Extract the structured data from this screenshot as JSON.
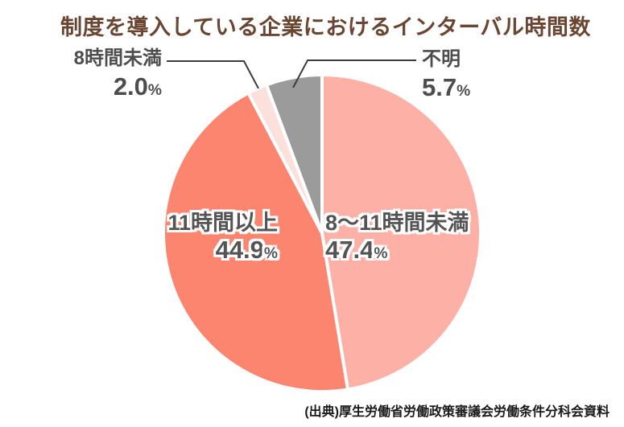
{
  "title": "制度を導入している企業におけるインターバル時間数",
  "source": "(出典)厚生労働省労働政策審議会労働条件分科会資料",
  "unit": "%",
  "colors": {
    "title_text": "#6a4531",
    "outside_label_text": "#4d4d4d",
    "inside_label_text": "#545454",
    "leader_line": "#3c3c3c",
    "slice_separator": "#ffffff",
    "background": "#ffffff"
  },
  "chart_data": {
    "type": "pie",
    "title": "制度を導入している企業におけるインターバル時間数",
    "start_angle_deg": 0,
    "direction": "clockwise",
    "legend_position": "none",
    "unit": "%",
    "slices": [
      {
        "label": "8〜11時間未満",
        "value": 47.4,
        "display": "47.4",
        "color": "#fdb1a6",
        "label_placement": "inside-right"
      },
      {
        "label": "11時間以上",
        "value": 44.9,
        "display": "44.9",
        "color": "#fc8570",
        "label_placement": "inside-left"
      },
      {
        "label": "8時間未満",
        "value": 2.0,
        "display": "2.0",
        "color": "#fbe0db",
        "label_placement": "outside-top-left"
      },
      {
        "label": "不明",
        "value": 5.7,
        "display": "5.7",
        "color": "#9b9b9b",
        "label_placement": "outside-top-right"
      }
    ]
  }
}
